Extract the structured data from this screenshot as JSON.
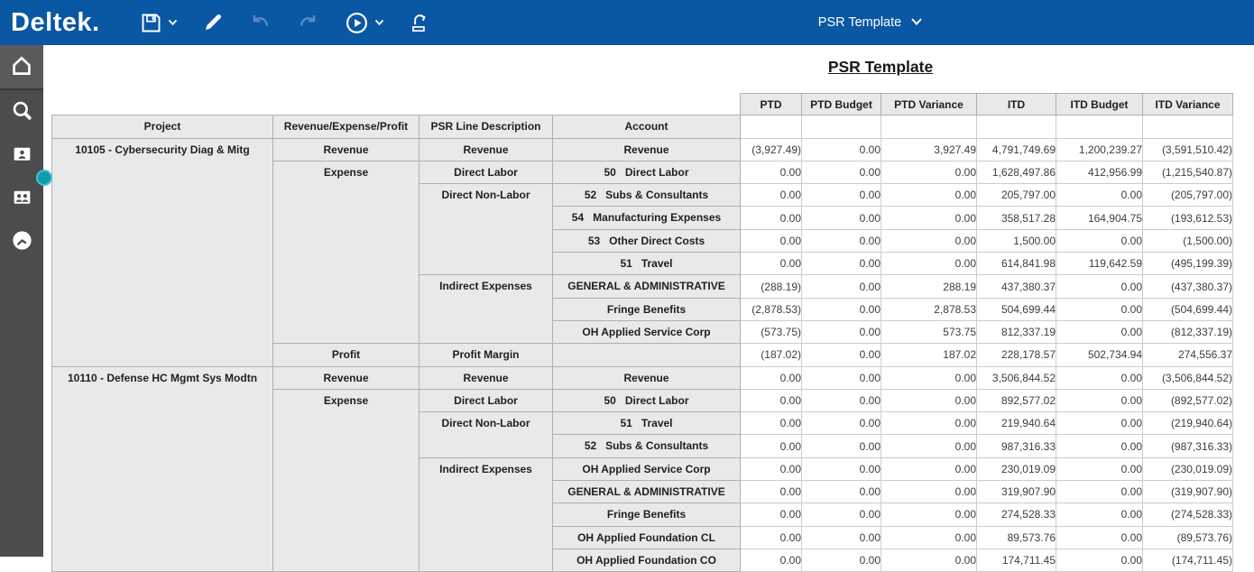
{
  "topbar": {
    "logo": "Deltek.",
    "template_selector": "PSR Template",
    "icons": [
      {
        "name": "save",
        "disabled": false,
        "has_dropdown": true
      },
      {
        "name": "edit",
        "disabled": false,
        "has_dropdown": false
      },
      {
        "name": "undo",
        "disabled": true,
        "has_dropdown": false
      },
      {
        "name": "redo",
        "disabled": true,
        "has_dropdown": false
      },
      {
        "name": "run",
        "disabled": false,
        "has_dropdown": true
      },
      {
        "name": "export",
        "disabled": false,
        "has_dropdown": false
      }
    ],
    "colors": {
      "background": "#0a57a4",
      "icon": "#ffffff",
      "icon_disabled": "#5c8cc4"
    }
  },
  "sidebar": {
    "icons": [
      "home",
      "search",
      "employee-folder",
      "people-folder",
      "clock"
    ],
    "colors": {
      "background": "#4c4c4e",
      "active_item": "#5a5a5c",
      "icon": "#ffffff",
      "handle": "#0f9cab"
    }
  },
  "report": {
    "title": "PSR Template",
    "value_headers": [
      "PTD",
      "PTD Budget",
      "PTD Variance",
      "ITD",
      "ITD Budget",
      "ITD Variance"
    ],
    "dim_headers": [
      "Project",
      "Revenue/Expense/Profit",
      "PSR Line Description",
      "Account"
    ],
    "rows": [
      {
        "dims": [
          {
            "name": "project",
            "label": "10105 - Cybersecurity Diag & Mitg",
            "rowspan": 10
          },
          {
            "name": "category",
            "label": "Revenue",
            "rowspan": 1
          },
          {
            "name": "line",
            "label": "Revenue",
            "rowspan": 1
          },
          {
            "name": "account",
            "label": "Revenue",
            "rowspan": 1
          }
        ],
        "values": [
          "(3,927.49)",
          "0.00",
          "3,927.49",
          "4,791,749.69",
          "1,200,239.27",
          "(3,591,510.42)"
        ]
      },
      {
        "dims": [
          {
            "name": "category",
            "label": "Expense",
            "rowspan": 8
          },
          {
            "name": "line",
            "label": "Direct Labor",
            "rowspan": 1
          },
          {
            "name": "account",
            "label": "50   Direct Labor",
            "rowspan": 1
          }
        ],
        "values": [
          "0.00",
          "0.00",
          "0.00",
          "1,628,497.86",
          "412,956.99",
          "(1,215,540.87)"
        ]
      },
      {
        "dims": [
          {
            "name": "line",
            "label": "Direct Non-Labor",
            "rowspan": 4
          },
          {
            "name": "account",
            "label": "52   Subs & Consultants",
            "rowspan": 1
          }
        ],
        "values": [
          "0.00",
          "0.00",
          "0.00",
          "205,797.00",
          "0.00",
          "(205,797.00)"
        ]
      },
      {
        "dims": [
          {
            "name": "account",
            "label": "54   Manufacturing Expenses",
            "rowspan": 1
          }
        ],
        "values": [
          "0.00",
          "0.00",
          "0.00",
          "358,517.28",
          "164,904.75",
          "(193,612.53)"
        ]
      },
      {
        "dims": [
          {
            "name": "account",
            "label": "53   Other Direct Costs",
            "rowspan": 1
          }
        ],
        "values": [
          "0.00",
          "0.00",
          "0.00",
          "1,500.00",
          "0.00",
          "(1,500.00)"
        ]
      },
      {
        "dims": [
          {
            "name": "account",
            "label": "51   Travel",
            "rowspan": 1
          }
        ],
        "values": [
          "0.00",
          "0.00",
          "0.00",
          "614,841.98",
          "119,642.59",
          "(495,199.39)"
        ]
      },
      {
        "dims": [
          {
            "name": "line",
            "label": "Indirect Expenses",
            "rowspan": 3
          },
          {
            "name": "account",
            "label": "GENERAL & ADMINISTRATIVE",
            "rowspan": 1
          }
        ],
        "values": [
          "(288.19)",
          "0.00",
          "288.19",
          "437,380.37",
          "0.00",
          "(437,380.37)"
        ]
      },
      {
        "dims": [
          {
            "name": "account",
            "label": "Fringe Benefits",
            "rowspan": 1
          }
        ],
        "values": [
          "(2,878.53)",
          "0.00",
          "2,878.53",
          "504,699.44",
          "0.00",
          "(504,699.44)"
        ]
      },
      {
        "dims": [
          {
            "name": "account",
            "label": "OH Applied Service Corp",
            "rowspan": 1
          }
        ],
        "values": [
          "(573.75)",
          "0.00",
          "573.75",
          "812,337.19",
          "0.00",
          "(812,337.19)"
        ]
      },
      {
        "dims": [
          {
            "name": "category",
            "label": "Profit",
            "rowspan": 1
          },
          {
            "name": "line",
            "label": "Profit Margin",
            "rowspan": 1
          },
          {
            "name": "account",
            "label": "",
            "rowspan": 1
          }
        ],
        "values": [
          "(187.02)",
          "0.00",
          "187.02",
          "228,178.57",
          "502,734.94",
          "274,556.37"
        ]
      },
      {
        "dims": [
          {
            "name": "project",
            "label": "10110 - Defense HC Mgmt Sys Modtn",
            "rowspan": 9
          },
          {
            "name": "category",
            "label": "Revenue",
            "rowspan": 1
          },
          {
            "name": "line",
            "label": "Revenue",
            "rowspan": 1
          },
          {
            "name": "account",
            "label": "Revenue",
            "rowspan": 1
          }
        ],
        "values": [
          "0.00",
          "0.00",
          "0.00",
          "3,506,844.52",
          "0.00",
          "(3,506,844.52)"
        ]
      },
      {
        "dims": [
          {
            "name": "category",
            "label": "Expense",
            "rowspan": 8
          },
          {
            "name": "line",
            "label": "Direct Labor",
            "rowspan": 1
          },
          {
            "name": "account",
            "label": "50   Direct Labor",
            "rowspan": 1
          }
        ],
        "values": [
          "0.00",
          "0.00",
          "0.00",
          "892,577.02",
          "0.00",
          "(892,577.02)"
        ]
      },
      {
        "dims": [
          {
            "name": "line",
            "label": "Direct Non-Labor",
            "rowspan": 2
          },
          {
            "name": "account",
            "label": "51   Travel",
            "rowspan": 1
          }
        ],
        "values": [
          "0.00",
          "0.00",
          "0.00",
          "219,940.64",
          "0.00",
          "(219,940.64)"
        ]
      },
      {
        "dims": [
          {
            "name": "account",
            "label": "52   Subs & Consultants",
            "rowspan": 1
          }
        ],
        "values": [
          "0.00",
          "0.00",
          "0.00",
          "987,316.33",
          "0.00",
          "(987,316.33)"
        ]
      },
      {
        "dims": [
          {
            "name": "line",
            "label": "Indirect Expenses",
            "rowspan": 5
          },
          {
            "name": "account",
            "label": "OH Applied Service Corp",
            "rowspan": 1
          }
        ],
        "values": [
          "0.00",
          "0.00",
          "0.00",
          "230,019.09",
          "0.00",
          "(230,019.09)"
        ]
      },
      {
        "dims": [
          {
            "name": "account",
            "label": "GENERAL & ADMINISTRATIVE",
            "rowspan": 1
          }
        ],
        "values": [
          "0.00",
          "0.00",
          "0.00",
          "319,907.90",
          "0.00",
          "(319,907.90)"
        ]
      },
      {
        "dims": [
          {
            "name": "account",
            "label": "Fringe Benefits",
            "rowspan": 1
          }
        ],
        "values": [
          "0.00",
          "0.00",
          "0.00",
          "274,528.33",
          "0.00",
          "(274,528.33)"
        ]
      },
      {
        "dims": [
          {
            "name": "account",
            "label": "OH Applied Foundation CL",
            "rowspan": 1
          }
        ],
        "values": [
          "0.00",
          "0.00",
          "0.00",
          "89,573.76",
          "0.00",
          "(89,573.76)"
        ]
      },
      {
        "dims": [
          {
            "name": "account",
            "label": "OH Applied Foundation CO",
            "rowspan": 1
          }
        ],
        "values": [
          "0.00",
          "0.00",
          "0.00",
          "174,711.45",
          "0.00",
          "(174,711.45)"
        ]
      }
    ]
  }
}
